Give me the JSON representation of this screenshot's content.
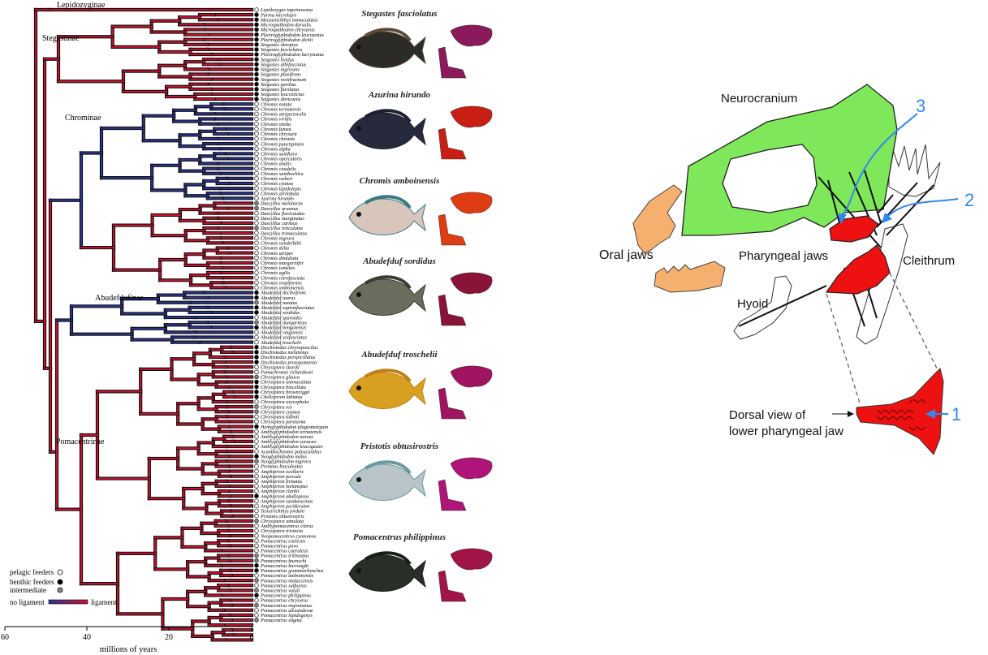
{
  "phylogeny": {
    "subfamilies": [
      "Lepidozyginae",
      "Stegastinae",
      "Chrominae",
      "Abudefdufinae",
      "Pomacentrinae"
    ],
    "axis": {
      "label": "millions of years",
      "ticks": [
        "60",
        "40",
        "20",
        "0"
      ]
    },
    "legend": {
      "pelagic": "pelagic feeders",
      "benthic": "benthic feeders",
      "intermediate": "intermediate",
      "no_ligament": "no ligament",
      "ligament": "ligament"
    },
    "colors": {
      "no_ligament": "#2b3490",
      "ligament": "#c8102e",
      "border": "#111111"
    }
  },
  "species": [
    {
      "name": "Lepidozygus tapeinosoma",
      "diet": "p"
    },
    {
      "name": "Parma microlepis",
      "diet": "b"
    },
    {
      "name": "Mecaenichthys immaculatus",
      "diet": "b"
    },
    {
      "name": "Microspathodon dorsalis",
      "diet": "b"
    },
    {
      "name": "Microspathodon chrysurus",
      "diet": "b"
    },
    {
      "name": "Plectroglyphidodon leucozonus",
      "diet": "b"
    },
    {
      "name": "Plectroglyphidodon dickii",
      "diet": "b"
    },
    {
      "name": "Stegastes obreptus",
      "diet": "b"
    },
    {
      "name": "Stegastes fasciolatus",
      "diet": "b"
    },
    {
      "name": "Plectroglyphidodon lacrymatus",
      "diet": "b"
    },
    {
      "name": "Stegastes lividus",
      "diet": "b"
    },
    {
      "name": "Stegastes albifasciatus",
      "diet": "b"
    },
    {
      "name": "Stegastes nigricans",
      "diet": "b"
    },
    {
      "name": "Stegastes planifrons",
      "diet": "b"
    },
    {
      "name": "Stegastes rectifraenum",
      "diet": "b"
    },
    {
      "name": "Stegastes partitus",
      "diet": "b"
    },
    {
      "name": "Stegastes flavilatus",
      "diet": "b"
    },
    {
      "name": "Stegastes leucostictus",
      "diet": "b"
    },
    {
      "name": "Stegastes diencaeus",
      "diet": "b"
    },
    {
      "name": "Chromis notata",
      "diet": "p"
    },
    {
      "name": "Chromis ternatensis",
      "diet": "p"
    },
    {
      "name": "Chromis atripectoralis",
      "diet": "p"
    },
    {
      "name": "Chromis viridis",
      "diet": "p"
    },
    {
      "name": "Chromis nitida",
      "diet": "p"
    },
    {
      "name": "Chromis fumea",
      "diet": "p"
    },
    {
      "name": "Chromis chrysura",
      "diet": "p"
    },
    {
      "name": "Chromis chromis",
      "diet": "p"
    },
    {
      "name": "Chromis punctipinnis",
      "diet": "p"
    },
    {
      "name": "Chromis alpha",
      "diet": "p"
    },
    {
      "name": "Chromis xanthura",
      "diet": "p"
    },
    {
      "name": "Chromis opercularis",
      "diet": "p"
    },
    {
      "name": "Chromis analis",
      "diet": "p"
    },
    {
      "name": "Chromis caudalis",
      "diet": "p"
    },
    {
      "name": "Chromis xanthochira",
      "diet": "p"
    },
    {
      "name": "Chromis weberi",
      "diet": "p"
    },
    {
      "name": "Chromis cyanea",
      "diet": "p"
    },
    {
      "name": "Chromis lepidolepis",
      "diet": "p"
    },
    {
      "name": "Chromis atrilobata",
      "diet": "p"
    },
    {
      "name": "Azurina hirundo",
      "diet": "p"
    },
    {
      "name": "Dascyllus melanurus",
      "diet": "i"
    },
    {
      "name": "Dascyllus aruanus",
      "diet": "i"
    },
    {
      "name": "Dascyllus flavicaudus",
      "diet": "p"
    },
    {
      "name": "Dascyllus marginatus",
      "diet": "p"
    },
    {
      "name": "Dascyllus carneus",
      "diet": "p"
    },
    {
      "name": "Dascyllus reticulatus",
      "diet": "i"
    },
    {
      "name": "Dascyllus trimaculatus",
      "diet": "p"
    },
    {
      "name": "Chromis nigrura",
      "diet": "p"
    },
    {
      "name": "Chromis vanderbilti",
      "diet": "p"
    },
    {
      "name": "Chromis delta",
      "diet": "p"
    },
    {
      "name": "Chromis atripes",
      "diet": "p"
    },
    {
      "name": "Chromis dimidiata",
      "diet": "p"
    },
    {
      "name": "Chromis margaritifer",
      "diet": "p"
    },
    {
      "name": "Chromis iomelas",
      "diet": "p"
    },
    {
      "name": "Chromis agilis",
      "diet": "p"
    },
    {
      "name": "Chromis retrofasciata",
      "diet": "p"
    },
    {
      "name": "Chromis ovatiformis",
      "diet": "p"
    },
    {
      "name": "Chromis amboinensis",
      "diet": "p"
    },
    {
      "name": "Abudefduf declivifrons",
      "diet": "b"
    },
    {
      "name": "Abudefduf taurus",
      "diet": "b"
    },
    {
      "name": "Abudefduf notatus",
      "diet": "i"
    },
    {
      "name": "Abudefduf septemfasciatus",
      "diet": "b"
    },
    {
      "name": "Abudefduf sordidus",
      "diet": "b"
    },
    {
      "name": "Abudefduf sparoides",
      "diet": "p"
    },
    {
      "name": "Abudefduf margariteus",
      "diet": "i"
    },
    {
      "name": "Abudefduf bengalensis",
      "diet": "b"
    },
    {
      "name": "Abudefduf vaigiensis",
      "diet": "p"
    },
    {
      "name": "Abudefduf sexfasciatus",
      "diet": "p"
    },
    {
      "name": "Abudefduf troschelii",
      "diet": "p"
    },
    {
      "name": "Dischistodus chrysopoecilus",
      "diet": "b"
    },
    {
      "name": "Dischistodus melanotus",
      "diet": "b"
    },
    {
      "name": "Dischistodus perspicillatus",
      "diet": "b"
    },
    {
      "name": "Dischistodus prosopotaenia",
      "diet": "b"
    },
    {
      "name": "Chrysiptera starcki",
      "diet": "p"
    },
    {
      "name": "Pomachromis richardsoni",
      "diet": "p"
    },
    {
      "name": "Chrysiptera glauca",
      "diet": "i"
    },
    {
      "name": "Chrysiptera unimaculata",
      "diet": "b"
    },
    {
      "name": "Chrysiptera biocellata",
      "diet": "b"
    },
    {
      "name": "Chrysiptera brownriggii",
      "diet": "b"
    },
    {
      "name": "Cheiloprion labiatus",
      "diet": "b"
    },
    {
      "name": "Chrysiptera oxycephala",
      "diet": "p"
    },
    {
      "name": "Chrysiptera rex",
      "diet": "i"
    },
    {
      "name": "Chrysiptera cyanea",
      "diet": "i"
    },
    {
      "name": "Chrysiptera talboti",
      "diet": "p"
    },
    {
      "name": "Chrysiptera parasema",
      "diet": "p"
    },
    {
      "name": "Hemiglyphidodon plagiometopon",
      "diet": "b"
    },
    {
      "name": "Amblyglyphidodon ternatensis",
      "diet": "p"
    },
    {
      "name": "Amblyglyphidodon aureus",
      "diet": "p"
    },
    {
      "name": "Amblyglyphidodon curacao",
      "diet": "p"
    },
    {
      "name": "Amblyglyphidodon leucogaster",
      "diet": "p"
    },
    {
      "name": "Acanthochromis polyacanthus",
      "diet": "p"
    },
    {
      "name": "Neoglyphidodon melas",
      "diet": "b"
    },
    {
      "name": "Neoglyphidodon nigroris",
      "diet": "i"
    },
    {
      "name": "Premnas biaculeatus",
      "diet": "p"
    },
    {
      "name": "Amphiprion ocellaris",
      "diet": "p"
    },
    {
      "name": "Amphiprion percula",
      "diet": "p"
    },
    {
      "name": "Amphiprion frenatus",
      "diet": "p"
    },
    {
      "name": "Amphiprion melanopus",
      "diet": "p"
    },
    {
      "name": "Amphiprion clarkii",
      "diet": "p"
    },
    {
      "name": "Amphiprion akallopisos",
      "diet": "b"
    },
    {
      "name": "Amphiprion sandaracinos",
      "diet": "p"
    },
    {
      "name": "Amphiprion perideraion",
      "diet": "p"
    },
    {
      "name": "Teixeirichthys jordani",
      "diet": "p"
    },
    {
      "name": "Pristotis obtusirostris",
      "diet": "p"
    },
    {
      "name": "Chrysiptera annulata",
      "diet": "i"
    },
    {
      "name": "Amblypomacentrus clarus",
      "diet": "p"
    },
    {
      "name": "Chrysiptera tricincta",
      "diet": "p"
    },
    {
      "name": "Neopomacentrus cyanomos",
      "diet": "p"
    },
    {
      "name": "Pomacentrus coelestis",
      "diet": "p"
    },
    {
      "name": "Pomacentrus pavo",
      "diet": "p"
    },
    {
      "name": "Pomacentrus caeruleus",
      "diet": "p"
    },
    {
      "name": "Pomacentrus trilineatus",
      "diet": "i"
    },
    {
      "name": "Pomacentrus baenschi",
      "diet": "i"
    },
    {
      "name": "Pomacentrus burroughi",
      "diet": "b"
    },
    {
      "name": "Pomacentrus grammorhynchus",
      "diet": "b"
    },
    {
      "name": "Pomacentrus amboinensis",
      "diet": "p"
    },
    {
      "name": "Pomacentrus moluccensis",
      "diet": "i"
    },
    {
      "name": "Pomacentrus sulfureus",
      "diet": "p"
    },
    {
      "name": "Pomacentrus vaiuli",
      "diet": "i"
    },
    {
      "name": "Pomacentrus philippinus",
      "diet": "b"
    },
    {
      "name": "Pomacentrus chrysurus",
      "diet": "p"
    },
    {
      "name": "Pomacentrus nigromanus",
      "diet": "i"
    },
    {
      "name": "Pomacentrus alexanderae",
      "diet": "p"
    },
    {
      "name": "Pomacentrus lepidogenys",
      "diet": "p"
    },
    {
      "name": "Pomacentrus stigma",
      "diet": "i"
    }
  ],
  "fish_photos": [
    {
      "caption": "Stegastes fasciolatus",
      "body": "#2c2b28",
      "fin": "#5a4a3a",
      "jaw": "#8a1a5a"
    },
    {
      "caption": "Azurina hirundo",
      "body": "#262a3c",
      "fin": "#1c1f2e",
      "jaw": "#c81e14"
    },
    {
      "caption": "Chromis amboinensis",
      "body": "#d8c6bc",
      "fin": "#3a7a80",
      "jaw": "#e03c14"
    },
    {
      "caption": "Abudefduf sordidus",
      "body": "#6a6c5e",
      "fin": "#3a3c34",
      "jaw": "#8a1438"
    },
    {
      "caption": "Abudefduf troschelii",
      "body": "#d8a020",
      "fin": "#c08018",
      "jaw": "#a01460"
    },
    {
      "caption": "Pristotis obtusirostris",
      "body": "#b8c4c8",
      "fin": "#6a9a9c",
      "jaw": "#b01478"
    },
    {
      "caption": "Pomacentrus philippinus",
      "body": "#2a2e28",
      "fin": "#1a1c18",
      "jaw": "#a01448"
    }
  ],
  "jaw_diagram": {
    "neurocranium": "Neurocranium",
    "oral_jaws": "Oral jaws",
    "pharyngeal_jaws": "Pharyngeal jaws",
    "cleithrum": "Cleithrum",
    "hyoid": "Hyoid",
    "dorsal_view_line1": "Dorsal view of",
    "dorsal_view_line2": "lower pharyngeal jaw",
    "marker_1": "1",
    "marker_2": "2",
    "marker_3": "3",
    "colors": {
      "neurocranium": "#7ee85a",
      "oral_jaws": "#f5b070",
      "pharyngeal": "#ee1111",
      "arrows": "#3388ee"
    }
  }
}
